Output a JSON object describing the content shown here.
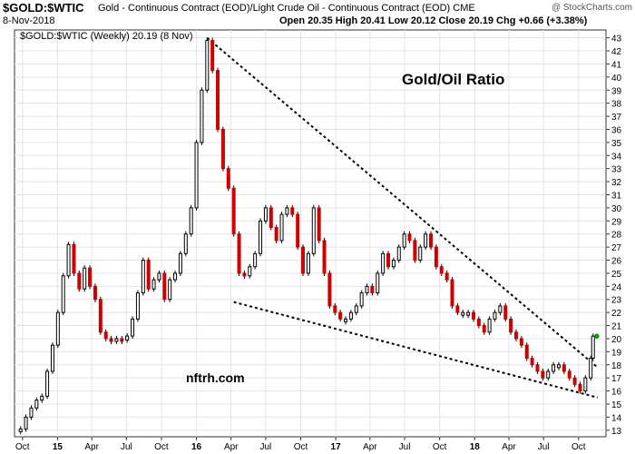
{
  "header": {
    "symbol": "$GOLD:$WTIC",
    "subtitle": "Gold - Continuous Contract (EOD)/Light Crude Oil - Continuous Contract (EOD)  CME",
    "date": "8-Nov-2018",
    "ohlc": "Open 20.35  High 20.41  Low 20.12  Close 20.19  Chg +0.66 (+3.38%)",
    "watermark": "@ StockCharts.com"
  },
  "chart_data": {
    "type": "line",
    "legend_label": "$GOLD:$WTIC (Weekly) 20.19 (8 Nov)",
    "annotations": [
      "Gold/Oil Ratio",
      "nftrh.com"
    ],
    "ylim": [
      12.5,
      43.6
    ],
    "y_ticks": [
      13,
      14,
      15,
      16,
      17,
      18,
      19,
      20,
      21,
      22,
      23,
      24,
      25,
      26,
      27,
      28,
      29,
      30,
      31,
      32,
      33,
      34,
      35,
      36,
      37,
      38,
      39,
      40,
      41,
      42,
      43
    ],
    "x_ticks": [
      "Oct",
      "15",
      "Apr",
      "Jul",
      "Oct",
      "16",
      "Apr",
      "Jul",
      "Oct",
      "17",
      "Apr",
      "Jul",
      "Oct",
      "18",
      "Apr",
      "Jul",
      "Oct"
    ],
    "x_tick_dates": [
      "2014-10-01",
      "2015-01-01",
      "2015-04-01",
      "2015-07-01",
      "2015-10-01",
      "2016-01-01",
      "2016-04-01",
      "2016-07-01",
      "2016-10-01",
      "2017-01-01",
      "2017-04-01",
      "2017-07-01",
      "2017-10-01",
      "2018-01-01",
      "2018-04-01",
      "2018-07-01",
      "2018-10-01"
    ],
    "grid": true,
    "series": [
      {
        "name": "$GOLD:$WTIC (Weekly)",
        "points": [
          [
            "2014-09-26",
            13.1
          ],
          [
            "2014-10-10",
            14.0
          ],
          [
            "2014-10-24",
            14.7
          ],
          [
            "2014-11-07",
            15.3
          ],
          [
            "2014-11-21",
            15.6
          ],
          [
            "2014-12-05",
            17.5
          ],
          [
            "2014-12-19",
            19.5
          ],
          [
            "2015-01-02",
            22.0
          ],
          [
            "2015-01-16",
            24.8
          ],
          [
            "2015-01-30",
            27.2
          ],
          [
            "2015-02-13",
            25.0
          ],
          [
            "2015-02-27",
            23.8
          ],
          [
            "2015-03-13",
            25.4
          ],
          [
            "2015-03-27",
            24.0
          ],
          [
            "2015-04-10",
            23.0
          ],
          [
            "2015-04-24",
            20.5
          ],
          [
            "2015-05-08",
            20.0
          ],
          [
            "2015-05-22",
            19.8
          ],
          [
            "2015-06-05",
            20.0
          ],
          [
            "2015-06-19",
            19.9
          ],
          [
            "2015-07-03",
            20.2
          ],
          [
            "2015-07-17",
            21.5
          ],
          [
            "2015-07-31",
            23.5
          ],
          [
            "2015-08-14",
            26.0
          ],
          [
            "2015-08-28",
            23.8
          ],
          [
            "2015-09-11",
            24.5
          ],
          [
            "2015-09-25",
            25.0
          ],
          [
            "2015-10-09",
            23.0
          ],
          [
            "2015-10-23",
            24.5
          ],
          [
            "2015-11-06",
            25.0
          ],
          [
            "2015-11-20",
            26.5
          ],
          [
            "2015-12-04",
            28.0
          ],
          [
            "2015-12-18",
            30.0
          ],
          [
            "2016-01-01",
            35.0
          ],
          [
            "2016-01-15",
            39.0
          ],
          [
            "2016-01-29",
            42.8
          ],
          [
            "2016-02-12",
            40.5
          ],
          [
            "2016-02-26",
            36.0
          ],
          [
            "2016-03-11",
            33.0
          ],
          [
            "2016-03-25",
            31.5
          ],
          [
            "2016-04-08",
            28.0
          ],
          [
            "2016-04-22",
            25.0
          ],
          [
            "2016-05-06",
            24.8
          ],
          [
            "2016-05-20",
            25.5
          ],
          [
            "2016-06-03",
            26.5
          ],
          [
            "2016-06-17",
            29.0
          ],
          [
            "2016-07-01",
            30.0
          ],
          [
            "2016-07-15",
            28.5
          ],
          [
            "2016-07-29",
            27.5
          ],
          [
            "2016-08-12",
            29.5
          ],
          [
            "2016-08-26",
            30.0
          ],
          [
            "2016-09-09",
            29.5
          ],
          [
            "2016-09-23",
            27.0
          ],
          [
            "2016-10-07",
            25.0
          ],
          [
            "2016-10-21",
            26.5
          ],
          [
            "2016-11-04",
            30.0
          ],
          [
            "2016-11-18",
            27.5
          ],
          [
            "2016-12-02",
            25.0
          ],
          [
            "2016-12-16",
            22.5
          ],
          [
            "2016-12-30",
            22.0
          ],
          [
            "2017-01-13",
            21.5
          ],
          [
            "2017-01-27",
            21.5
          ],
          [
            "2017-02-10",
            22.0
          ],
          [
            "2017-02-24",
            22.5
          ],
          [
            "2017-03-10",
            23.5
          ],
          [
            "2017-03-24",
            24.0
          ],
          [
            "2017-04-07",
            23.5
          ],
          [
            "2017-04-21",
            25.0
          ],
          [
            "2017-05-05",
            26.5
          ],
          [
            "2017-05-19",
            25.5
          ],
          [
            "2017-06-02",
            26.0
          ],
          [
            "2017-06-16",
            27.0
          ],
          [
            "2017-06-30",
            28.0
          ],
          [
            "2017-07-14",
            27.5
          ],
          [
            "2017-07-28",
            26.0
          ],
          [
            "2017-08-11",
            27.0
          ],
          [
            "2017-08-25",
            28.0
          ],
          [
            "2017-09-08",
            27.0
          ],
          [
            "2017-09-22",
            25.5
          ],
          [
            "2017-10-06",
            25.0
          ],
          [
            "2017-10-20",
            24.5
          ],
          [
            "2017-11-03",
            22.5
          ],
          [
            "2017-11-17",
            22.0
          ],
          [
            "2017-12-01",
            22.0
          ],
          [
            "2017-12-15",
            22.0
          ],
          [
            "2017-12-29",
            21.5
          ],
          [
            "2018-01-12",
            21.0
          ],
          [
            "2018-01-26",
            20.5
          ],
          [
            "2018-02-09",
            21.5
          ],
          [
            "2018-02-23",
            22.0
          ],
          [
            "2018-03-09",
            22.5
          ],
          [
            "2018-03-23",
            21.5
          ],
          [
            "2018-04-06",
            20.5
          ],
          [
            "2018-04-20",
            20.0
          ],
          [
            "2018-05-04",
            19.5
          ],
          [
            "2018-05-18",
            18.5
          ],
          [
            "2018-06-01",
            18.0
          ],
          [
            "2018-06-15",
            17.5
          ],
          [
            "2018-06-29",
            17.0
          ],
          [
            "2018-07-13",
            17.5
          ],
          [
            "2018-07-27",
            18.0
          ],
          [
            "2018-08-10",
            18.0
          ],
          [
            "2018-08-24",
            17.5
          ],
          [
            "2018-09-07",
            17.0
          ],
          [
            "2018-09-21",
            16.5
          ],
          [
            "2018-10-05",
            16.0
          ],
          [
            "2018-10-19",
            17.0
          ],
          [
            "2018-11-02",
            18.5
          ],
          [
            "2018-11-08",
            20.19
          ]
        ]
      }
    ],
    "trendlines": [
      {
        "from": [
          "2016-01-29",
          43.0
        ],
        "to": [
          "2018-11-20",
          17.8
        ]
      },
      {
        "from": [
          "2016-04-08",
          22.8
        ],
        "to": [
          "2018-11-20",
          15.5
        ]
      }
    ]
  }
}
